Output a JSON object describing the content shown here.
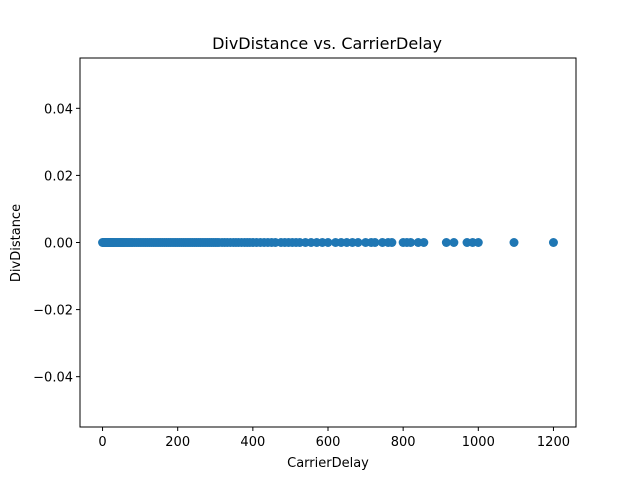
{
  "chart_data": {
    "type": "scatter",
    "title": "DivDistance vs. CarrierDelay",
    "xlabel": "CarrierDelay",
    "ylabel": "DivDistance",
    "xlim": [
      -60,
      1260
    ],
    "ylim": [
      -0.055,
      0.055
    ],
    "xticks": [
      0,
      200,
      400,
      600,
      800,
      1000,
      1200
    ],
    "xtick_labels": [
      "0",
      "200",
      "400",
      "600",
      "800",
      "1000",
      "1200"
    ],
    "yticks": [
      -0.04,
      -0.02,
      0.0,
      0.02,
      0.04
    ],
    "ytick_labels": [
      "−0.04",
      "−0.02",
      "0.00",
      "0.02",
      "0.04"
    ],
    "grid": false,
    "color": "#1f77b4",
    "series": [
      {
        "x": [
          0,
          2,
          4,
          6,
          8,
          10,
          12,
          14,
          16,
          18,
          20,
          22,
          24,
          26,
          28,
          30,
          33,
          36,
          39,
          42,
          45,
          48,
          51,
          54,
          57,
          60,
          64,
          68,
          72,
          76,
          80,
          85,
          90,
          95,
          100,
          105,
          110,
          115,
          120,
          125,
          130,
          135,
          140,
          145,
          150,
          155,
          160,
          165,
          170,
          175,
          180,
          185,
          190,
          195,
          200,
          205,
          210,
          215,
          220,
          225,
          230,
          235,
          240,
          245,
          250,
          255,
          260,
          265,
          270,
          275,
          280,
          285,
          290,
          295,
          300,
          305,
          310,
          318,
          325,
          332,
          340,
          348,
          355,
          362,
          370,
          378,
          385,
          392,
          400,
          410,
          420,
          430,
          440,
          450,
          460,
          475,
          485,
          495,
          505,
          515,
          525,
          540,
          555,
          570,
          585,
          600,
          620,
          635,
          650,
          665,
          680,
          700,
          715,
          725,
          745,
          760,
          770,
          800,
          810,
          820,
          840,
          855,
          915,
          935,
          970,
          985,
          1000,
          1095,
          1200
        ],
        "y": [
          0,
          0,
          0,
          0,
          0,
          0,
          0,
          0,
          0,
          0,
          0,
          0,
          0,
          0,
          0,
          0,
          0,
          0,
          0,
          0,
          0,
          0,
          0,
          0,
          0,
          0,
          0,
          0,
          0,
          0,
          0,
          0,
          0,
          0,
          0,
          0,
          0,
          0,
          0,
          0,
          0,
          0,
          0,
          0,
          0,
          0,
          0,
          0,
          0,
          0,
          0,
          0,
          0,
          0,
          0,
          0,
          0,
          0,
          0,
          0,
          0,
          0,
          0,
          0,
          0,
          0,
          0,
          0,
          0,
          0,
          0,
          0,
          0,
          0,
          0,
          0,
          0,
          0,
          0,
          0,
          0,
          0,
          0,
          0,
          0,
          0,
          0,
          0,
          0,
          0,
          0,
          0,
          0,
          0,
          0,
          0,
          0,
          0,
          0,
          0,
          0,
          0,
          0,
          0,
          0,
          0,
          0,
          0,
          0,
          0,
          0,
          0,
          0,
          0,
          0,
          0,
          0,
          0,
          0,
          0,
          0,
          0,
          0,
          0,
          0,
          0,
          0,
          0,
          0
        ]
      }
    ]
  }
}
